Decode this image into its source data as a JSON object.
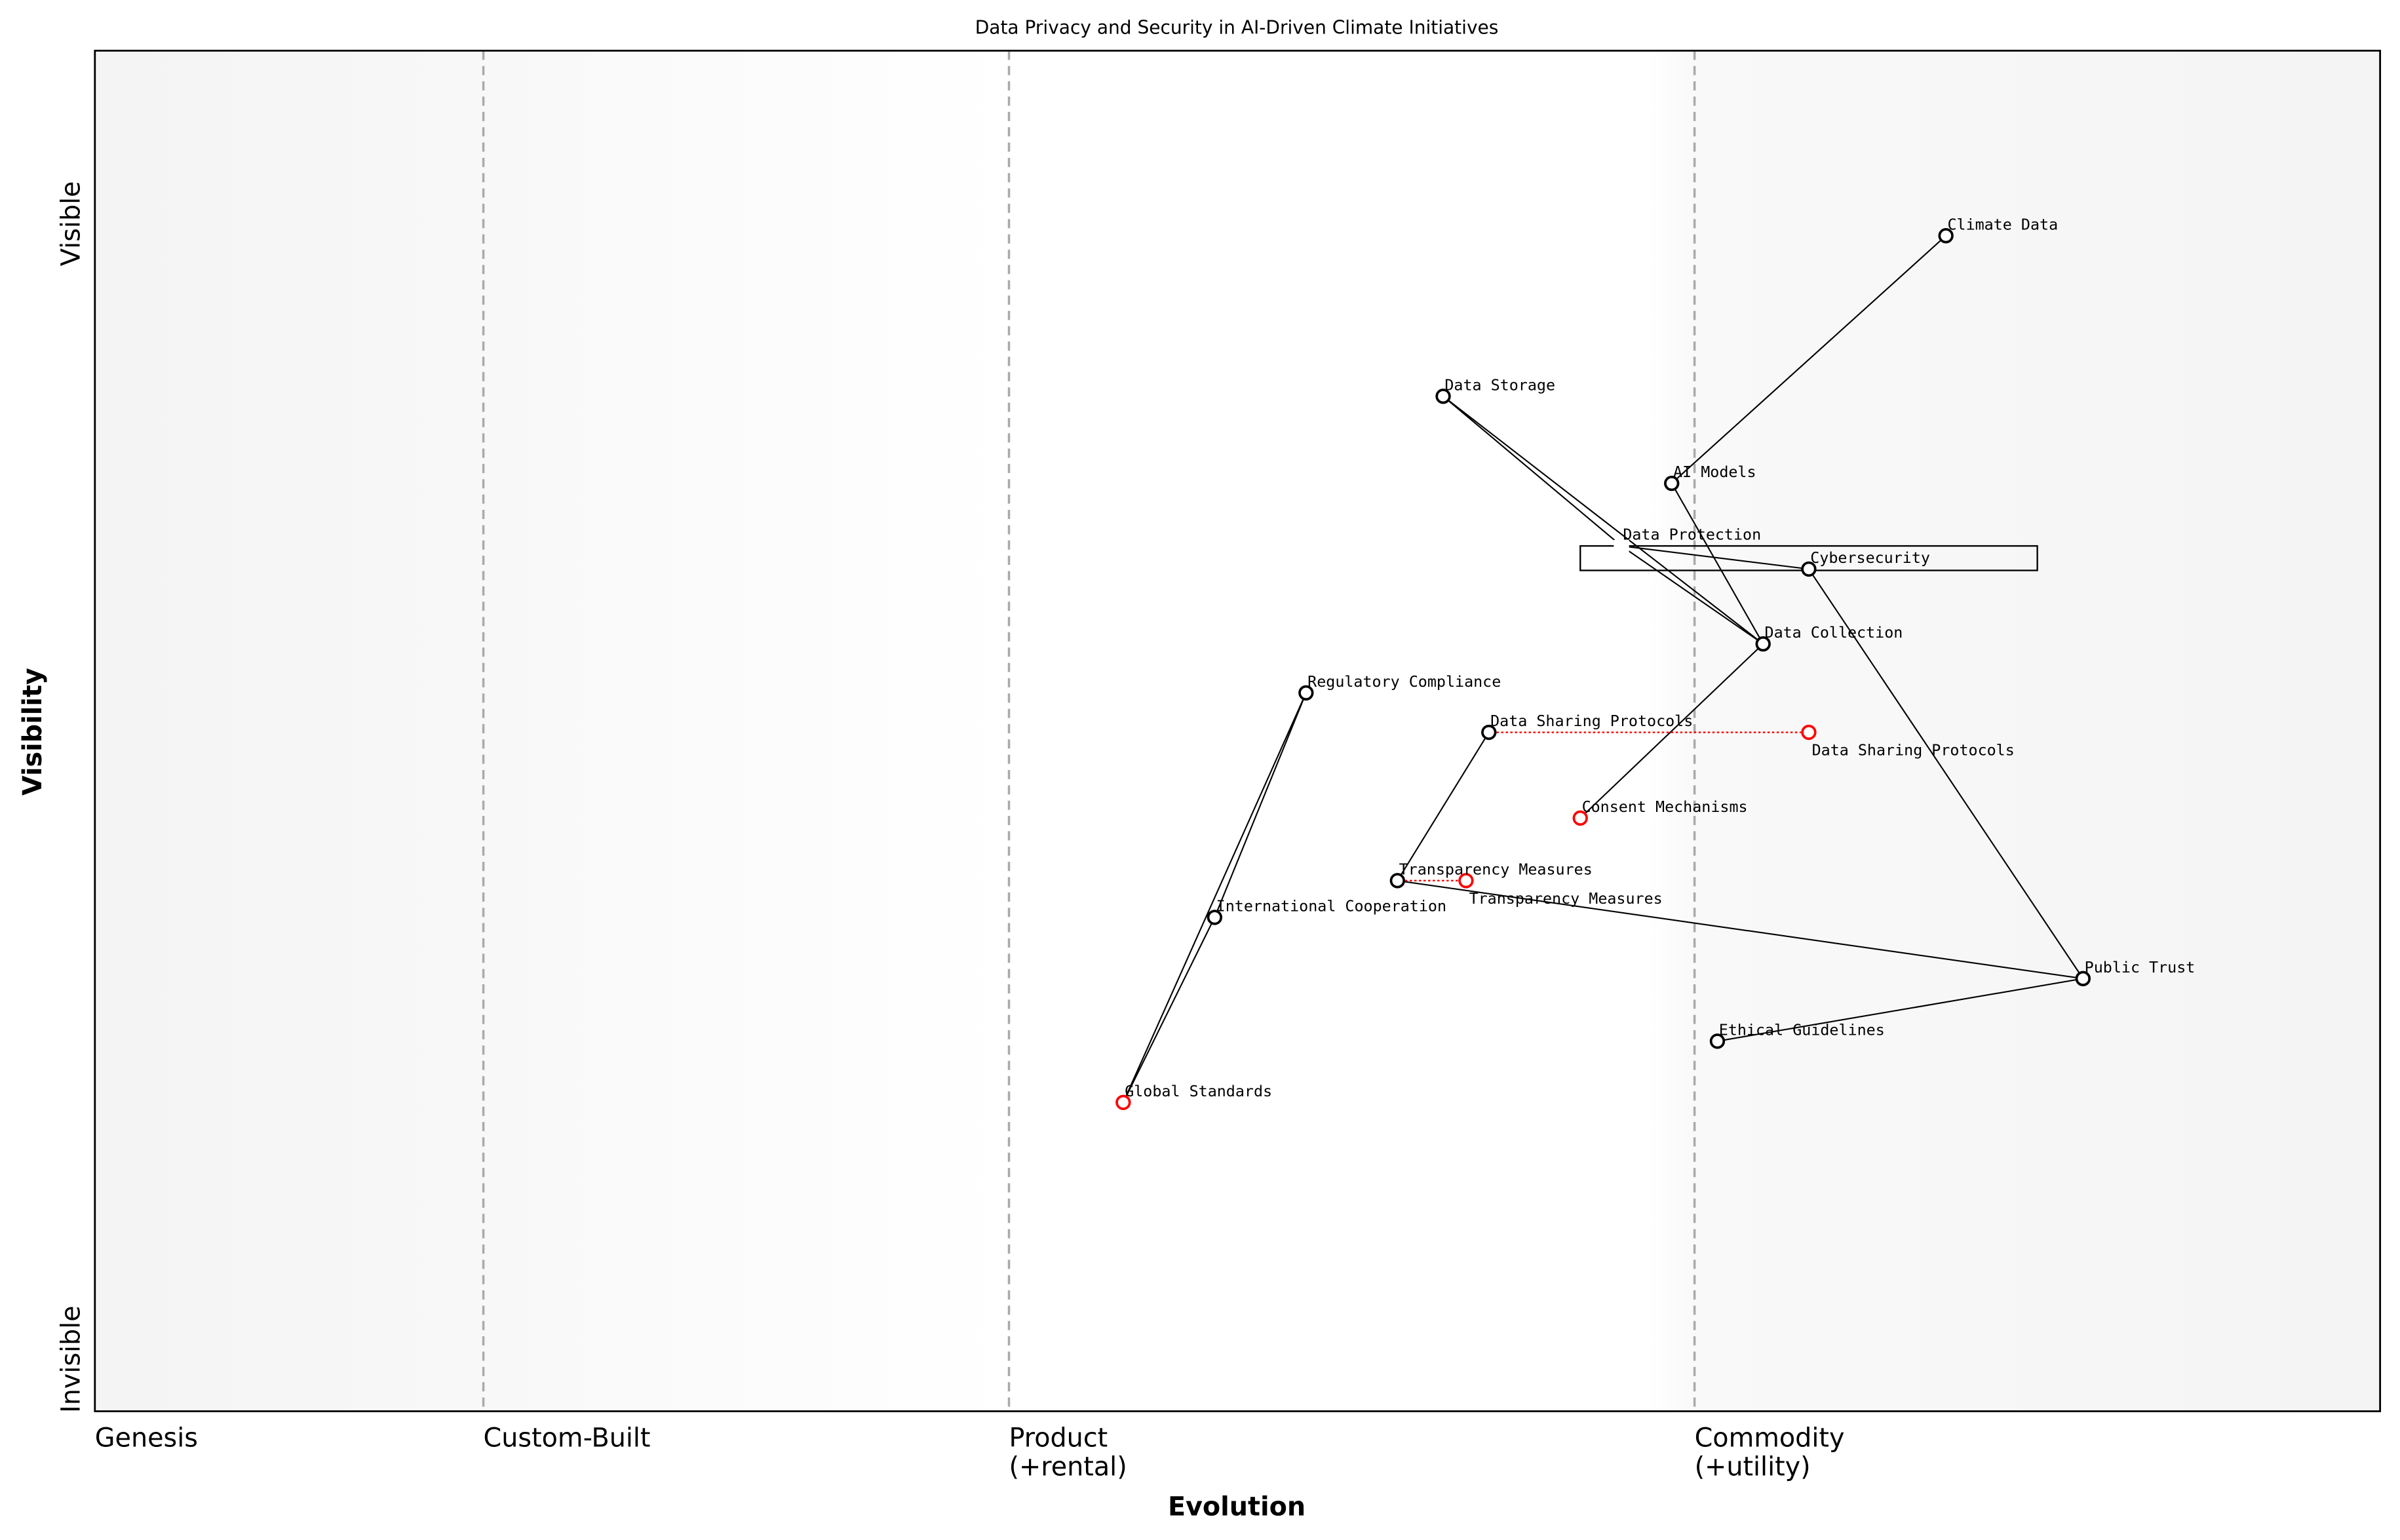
{
  "title": "Data Privacy and Security in AI-Driven Climate Initiatives",
  "x_axis_label": "Evolution",
  "y_axis_label": "Visibility",
  "y_top_label": "Visible",
  "y_bottom_label": "Invisible",
  "stages": [
    {
      "evolution": 0.0,
      "lines": [
        "Genesis"
      ]
    },
    {
      "evolution": 0.17,
      "lines": [
        "Custom-Built"
      ]
    },
    {
      "evolution": 0.4,
      "lines": [
        "Product",
        "(+rental)"
      ]
    },
    {
      "evolution": 0.7,
      "lines": [
        "Commodity",
        "(+utility)"
      ]
    }
  ],
  "colors": {
    "node": "#000000",
    "evolve": "#ff0000",
    "divider": "#aaaaaa",
    "band": "#f5f5f5"
  },
  "components": [
    {
      "name": "Climate Data",
      "evolution": 0.81,
      "visibility": 0.864
    },
    {
      "name": "Data Storage",
      "evolution": 0.59,
      "visibility": 0.746
    },
    {
      "name": "AI Models",
      "evolution": 0.69,
      "visibility": 0.682
    },
    {
      "name": "Data Protection",
      "evolution": 0.668,
      "visibility": 0.636,
      "hidden_marker": true
    },
    {
      "name": "Cybersecurity",
      "evolution": 0.75,
      "visibility": 0.619
    },
    {
      "name": "Data Collection",
      "evolution": 0.73,
      "visibility": 0.564
    },
    {
      "name": "Regulatory Compliance",
      "evolution": 0.53,
      "visibility": 0.528
    },
    {
      "name": "Data Sharing Protocols",
      "evolution": 0.61,
      "visibility": 0.499
    },
    {
      "name": "Consent Mechanisms",
      "evolution": 0.65,
      "visibility": 0.436,
      "evolving": true
    },
    {
      "name": "Transparency Measures",
      "evolution": 0.57,
      "visibility": 0.39
    },
    {
      "name": "International Cooperation",
      "evolution": 0.49,
      "visibility": 0.363
    },
    {
      "name": "Public Trust",
      "evolution": 0.87,
      "visibility": 0.318
    },
    {
      "name": "Ethical Guidelines",
      "evolution": 0.71,
      "visibility": 0.272
    },
    {
      "name": "Global Standards",
      "evolution": 0.45,
      "visibility": 0.227,
      "evolving": true
    }
  ],
  "links": [
    [
      "Climate Data",
      "AI Models"
    ],
    [
      "Data Storage",
      "Data Protection"
    ],
    [
      "Data Storage",
      "Data Collection"
    ],
    [
      "AI Models",
      "Data Collection"
    ],
    [
      "Data Protection",
      "Cybersecurity"
    ],
    [
      "Data Protection",
      "Data Collection"
    ],
    [
      "Cybersecurity",
      "Public Trust"
    ],
    [
      "Data Collection",
      "Consent Mechanisms"
    ],
    [
      "Regulatory Compliance",
      "International Cooperation"
    ],
    [
      "Regulatory Compliance",
      "Global Standards"
    ],
    [
      "International Cooperation",
      "Global Standards"
    ],
    [
      "Data Sharing Protocols",
      "Transparency Measures"
    ],
    [
      "Transparency Measures",
      "Public Trust"
    ],
    [
      "Public Trust",
      "Ethical Guidelines"
    ]
  ],
  "evolve": [
    {
      "name": "Data Sharing Protocols",
      "to": 0.75
    },
    {
      "name": "Transparency Measures",
      "to": 0.6
    }
  ],
  "pipelines": [
    {
      "name": "Data Protection",
      "from": 0.65,
      "to": 0.85,
      "visibility": 0.627
    }
  ]
}
